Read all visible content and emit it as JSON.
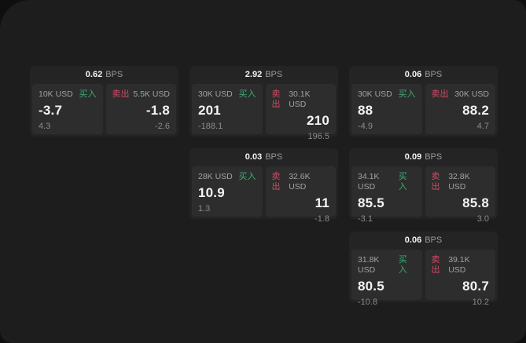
{
  "labels": {
    "bps_unit": "BPS",
    "buy": "买入",
    "sell": "卖出"
  },
  "colors": {
    "backdrop": "#0f0f0f",
    "surface": "#1d1d1d",
    "card": "#242425",
    "panel": "#2d2d2e",
    "buy_green": "#3eac72",
    "sell_red": "#d14b63"
  },
  "cards": [
    {
      "bps": "0.62",
      "buy": {
        "amount": "10K USD",
        "price": "-3.7",
        "delta": "4.3"
      },
      "sell": {
        "amount": "5.5K USD",
        "price": "-1.8",
        "delta": "-2.6"
      }
    },
    {
      "bps": "2.92",
      "buy": {
        "amount": "30K USD",
        "price": "201",
        "delta": "-188.1"
      },
      "sell": {
        "amount": "30.1K USD",
        "price": "210",
        "delta": "196.5"
      }
    },
    {
      "bps": "0.06",
      "buy": {
        "amount": "30K USD",
        "price": "88",
        "delta": "-4.9"
      },
      "sell": {
        "amount": "30K USD",
        "price": "88.2",
        "delta": "4.7"
      }
    },
    {
      "bps": "0.03",
      "buy": {
        "amount": "28K USD",
        "price": "10.9",
        "delta": "1.3"
      },
      "sell": {
        "amount": "32.6K USD",
        "price": "11",
        "delta": "-1.8"
      }
    },
    {
      "bps": "0.09",
      "buy": {
        "amount": "34.1K USD",
        "price": "85.5",
        "delta": "-3.1"
      },
      "sell": {
        "amount": "32.8K USD",
        "price": "85.8",
        "delta": "3.0"
      }
    },
    {
      "bps": "0.06",
      "buy": {
        "amount": "31.8K USD",
        "price": "80.5",
        "delta": "-10.8"
      },
      "sell": {
        "amount": "39.1K USD",
        "price": "80.7",
        "delta": "10.2"
      }
    }
  ]
}
